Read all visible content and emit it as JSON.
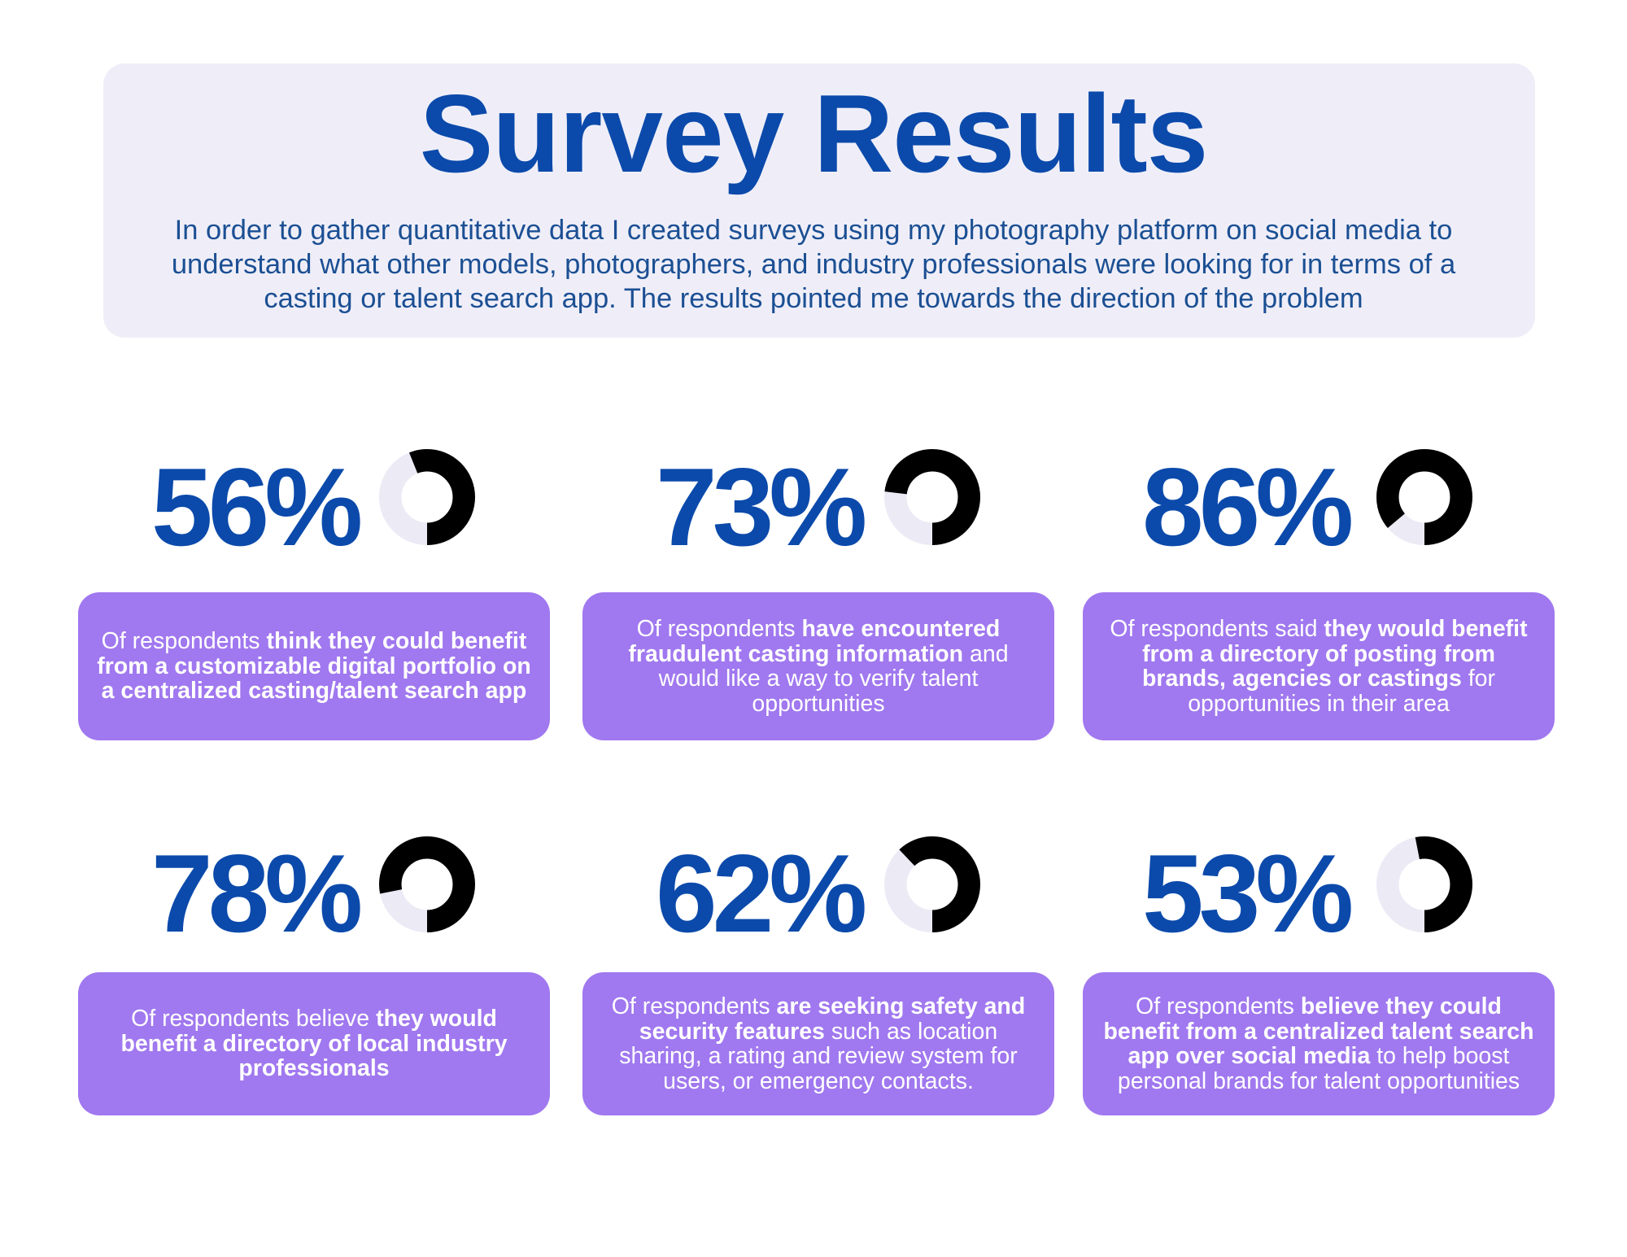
{
  "header": {
    "title": "Survey Results",
    "intro": "In order to gather quantitative data I created surveys using my photography platform on social media to understand what other models, photographers, and industry professionals were looking for in terms of a casting or talent search app. The results pointed me towards the direction of the problem"
  },
  "colors": {
    "accent_blue": "#0b4aab",
    "card_purple": "#a078ef",
    "header_bg": "#efeef8",
    "donut_fill": "#000000",
    "donut_track": "#eceaf5"
  },
  "chart_data": [
    {
      "type": "pie",
      "label": "56%",
      "value": 56,
      "description": [
        {
          "text": "Of respondents ",
          "bold": false
        },
        {
          "text": "think they could benefit from a customizable digital portfolio on a centralized casting/talent search  app",
          "bold": true
        }
      ]
    },
    {
      "type": "pie",
      "label": "73%",
      "value": 73,
      "description": [
        {
          "text": "Of respondents ",
          "bold": false
        },
        {
          "text": "have encountered fraudulent casting information",
          "bold": true
        },
        {
          "text": " and would like a way to verify talent opportunities",
          "bold": false
        }
      ]
    },
    {
      "type": "pie",
      "label": "86%",
      "value": 86,
      "description": [
        {
          "text": "Of respondents said ",
          "bold": false
        },
        {
          "text": "they would benefit from a directory of posting from brands, agencies or castings",
          "bold": true
        },
        {
          "text": " for opportunities in their area",
          "bold": false
        }
      ]
    },
    {
      "type": "pie",
      "label": "78%",
      "value": 78,
      "description": [
        {
          "text": "Of respondents believe ",
          "bold": false
        },
        {
          "text": "they would benefit a directory of local industry professionals",
          "bold": true
        }
      ]
    },
    {
      "type": "pie",
      "label": "62%",
      "value": 62,
      "description": [
        {
          "text": "Of respondents ",
          "bold": false
        },
        {
          "text": "are seeking safety and security features",
          "bold": true
        },
        {
          "text": " such as location sharing, a rating and review system for users,  or emergency contacts.",
          "bold": false
        }
      ]
    },
    {
      "type": "pie",
      "label": "53%",
      "value": 53,
      "description": [
        {
          "text": "Of respondents ",
          "bold": false
        },
        {
          "text": "believe they could benefit from a centralized talent search app over social media",
          "bold": true
        },
        {
          "text": " to help boost personal brands for talent opportunities",
          "bold": false
        }
      ]
    }
  ]
}
